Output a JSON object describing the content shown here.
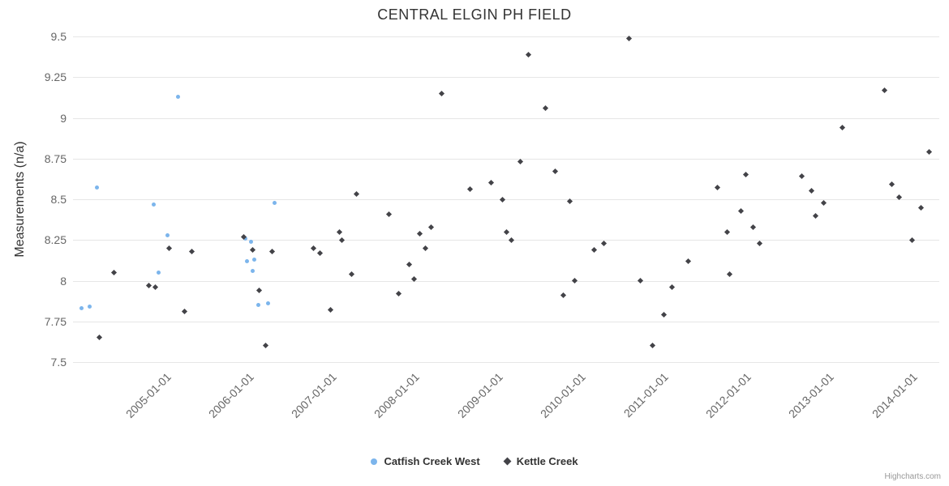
{
  "credits": "Highcharts.com",
  "colors": {
    "series1": "#7cb5ec",
    "series2": "#434348",
    "gridline": "#e6e6e6",
    "axis_line": "#ccd6eb",
    "tick_label": "#666666",
    "title": "#333333"
  },
  "chart_data": {
    "type": "scatter",
    "title": "CENTRAL ELGIN PH FIELD",
    "xlabel": "",
    "ylabel": "Measurements (n/a)",
    "ylim": [
      7.5,
      9.5
    ],
    "xlim": [
      2003.9,
      2014.35
    ],
    "grid": "horizontal-only",
    "legend_position": "bottom-center",
    "yticks": [
      {
        "value": 7.5,
        "label": "7.5"
      },
      {
        "value": 7.75,
        "label": "7.75"
      },
      {
        "value": 8,
        "label": "8"
      },
      {
        "value": 8.25,
        "label": "8.25"
      },
      {
        "value": 8.5,
        "label": "8.5"
      },
      {
        "value": 8.75,
        "label": "8.75"
      },
      {
        "value": 9,
        "label": "9"
      },
      {
        "value": 9.25,
        "label": "9.25"
      },
      {
        "value": 9.5,
        "label": "9.5"
      }
    ],
    "xticks": [
      {
        "value": 2005,
        "label": "2005-01-01"
      },
      {
        "value": 2006,
        "label": "2006-01-01"
      },
      {
        "value": 2007,
        "label": "2007-01-01"
      },
      {
        "value": 2008,
        "label": "2008-01-01"
      },
      {
        "value": 2009,
        "label": "2009-01-01"
      },
      {
        "value": 2010,
        "label": "2010-01-01"
      },
      {
        "value": 2011,
        "label": "2011-01-01"
      },
      {
        "value": 2012,
        "label": "2012-01-01"
      },
      {
        "value": 2013,
        "label": "2013-01-01"
      },
      {
        "value": 2014,
        "label": "2014-01-01"
      }
    ],
    "series": [
      {
        "name": "Catfish Creek West",
        "color": "#7cb5ec",
        "marker": "circle",
        "points": [
          [
            2004.0,
            7.83
          ],
          [
            2004.1,
            7.84
          ],
          [
            2004.19,
            8.57
          ],
          [
            2004.87,
            8.47
          ],
          [
            2004.93,
            8.05
          ],
          [
            2005.04,
            8.28
          ],
          [
            2005.17,
            9.13
          ],
          [
            2005.98,
            8.26
          ],
          [
            2006.0,
            8.12
          ],
          [
            2006.05,
            8.24
          ],
          [
            2006.07,
            8.06
          ],
          [
            2006.09,
            8.13
          ],
          [
            2006.14,
            7.85
          ],
          [
            2006.25,
            7.86
          ],
          [
            2006.33,
            8.48
          ]
        ]
      },
      {
        "name": "Kettle Creek",
        "color": "#434348",
        "marker": "diamond",
        "points": [
          [
            2004.22,
            7.65
          ],
          [
            2004.39,
            8.05
          ],
          [
            2004.81,
            7.97
          ],
          [
            2004.89,
            7.96
          ],
          [
            2005.06,
            8.2
          ],
          [
            2005.25,
            7.81
          ],
          [
            2005.33,
            8.18
          ],
          [
            2005.96,
            8.27
          ],
          [
            2006.07,
            8.19
          ],
          [
            2006.15,
            7.94
          ],
          [
            2006.22,
            7.6
          ],
          [
            2006.3,
            8.18
          ],
          [
            2006.8,
            8.2
          ],
          [
            2006.88,
            8.17
          ],
          [
            2007.01,
            7.82
          ],
          [
            2007.11,
            8.3
          ],
          [
            2007.14,
            8.25
          ],
          [
            2007.26,
            8.04
          ],
          [
            2007.32,
            8.53
          ],
          [
            2007.71,
            8.41
          ],
          [
            2007.83,
            7.92
          ],
          [
            2007.96,
            8.1
          ],
          [
            2008.01,
            8.01
          ],
          [
            2008.08,
            8.29
          ],
          [
            2008.15,
            8.2
          ],
          [
            2008.22,
            8.33
          ],
          [
            2008.35,
            9.15
          ],
          [
            2008.69,
            8.56
          ],
          [
            2008.94,
            8.6
          ],
          [
            2009.08,
            8.5
          ],
          [
            2009.13,
            8.3
          ],
          [
            2009.19,
            8.25
          ],
          [
            2009.3,
            8.73
          ],
          [
            2009.39,
            9.39
          ],
          [
            2009.6,
            9.06
          ],
          [
            2009.72,
            8.67
          ],
          [
            2009.81,
            7.91
          ],
          [
            2009.89,
            8.49
          ],
          [
            2009.95,
            8.0
          ],
          [
            2010.19,
            8.19
          ],
          [
            2010.3,
            8.23
          ],
          [
            2010.61,
            9.49
          ],
          [
            2010.74,
            8.0
          ],
          [
            2010.89,
            7.6
          ],
          [
            2011.03,
            7.79
          ],
          [
            2011.13,
            7.96
          ],
          [
            2011.32,
            8.12
          ],
          [
            2011.67,
            8.57
          ],
          [
            2011.79,
            8.3
          ],
          [
            2011.82,
            8.04
          ],
          [
            2011.96,
            8.43
          ],
          [
            2012.02,
            8.65
          ],
          [
            2012.1,
            8.33
          ],
          [
            2012.18,
            8.23
          ],
          [
            2012.69,
            8.64
          ],
          [
            2012.81,
            8.55
          ],
          [
            2012.86,
            8.4
          ],
          [
            2012.96,
            8.48
          ],
          [
            2013.18,
            8.94
          ],
          [
            2013.69,
            9.17
          ],
          [
            2013.78,
            8.59
          ],
          [
            2013.87,
            8.51
          ],
          [
            2014.02,
            8.25
          ],
          [
            2014.13,
            8.45
          ],
          [
            2014.23,
            8.79
          ]
        ]
      }
    ]
  }
}
